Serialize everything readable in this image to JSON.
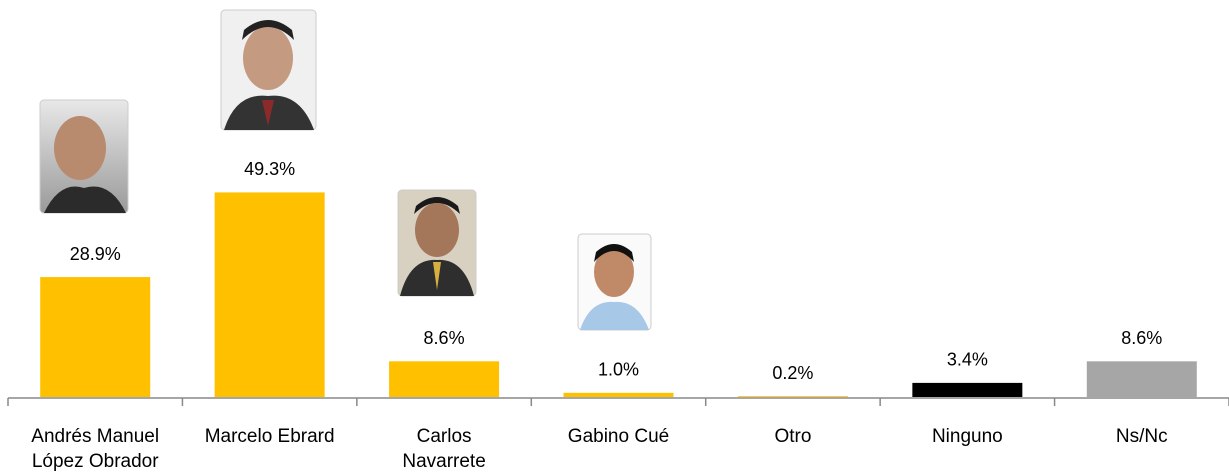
{
  "chart_data": {
    "type": "bar",
    "categories": [
      "Andrés Manuel López Obrador",
      "Marcelo Ebrard",
      "Carlos Navarrete",
      "Gabino Cué",
      "Otro",
      "Ninguno",
      "Ns/Nc"
    ],
    "values": [
      28.9,
      49.3,
      8.6,
      1.0,
      0.2,
      3.4,
      8.6
    ],
    "value_labels": [
      "28.9%",
      "49.3%",
      "8.6%",
      "1.0%",
      "0.2%",
      "3.4%",
      "8.6%"
    ],
    "colors": [
      "#ffc000",
      "#ffc000",
      "#ffc000",
      "#ffc000",
      "#ffc000",
      "#000000",
      "#a6a6a6"
    ]
  }
}
